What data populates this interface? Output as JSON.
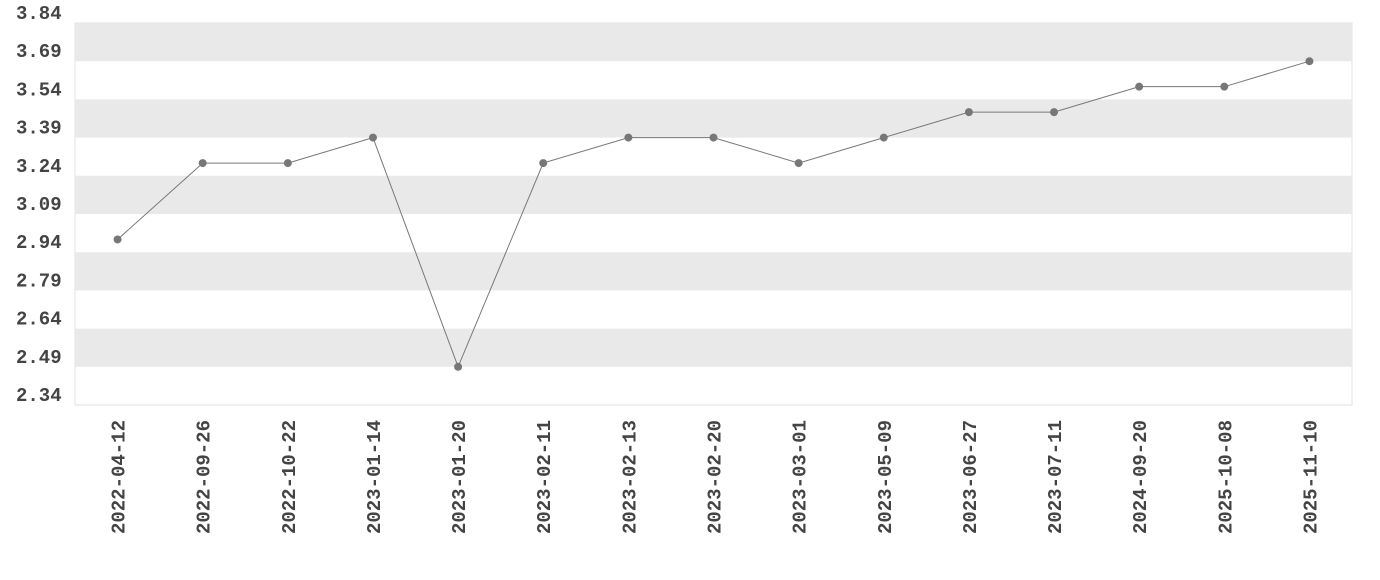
{
  "chart_data": {
    "type": "line",
    "categories": [
      "2022-04-12",
      "2022-09-26",
      "2022-10-22",
      "2023-01-14",
      "2023-01-20",
      "2023-02-11",
      "2023-02-13",
      "2023-02-20",
      "2023-03-01",
      "2023-05-09",
      "2023-06-27",
      "2023-07-11",
      "2024-09-20",
      "2025-10-08",
      "2025-11-10"
    ],
    "values": [
      2.99,
      3.29,
      3.29,
      3.39,
      2.49,
      3.29,
      3.39,
      3.39,
      3.29,
      3.39,
      3.49,
      3.49,
      3.59,
      3.59,
      3.69
    ],
    "color": "#777777",
    "ylim": [
      2.34,
      3.84
    ],
    "yticks": [
      2.34,
      2.49,
      2.64,
      2.79,
      2.94,
      3.09,
      3.24,
      3.39,
      3.54,
      3.69,
      3.84
    ],
    "grid": true
  }
}
